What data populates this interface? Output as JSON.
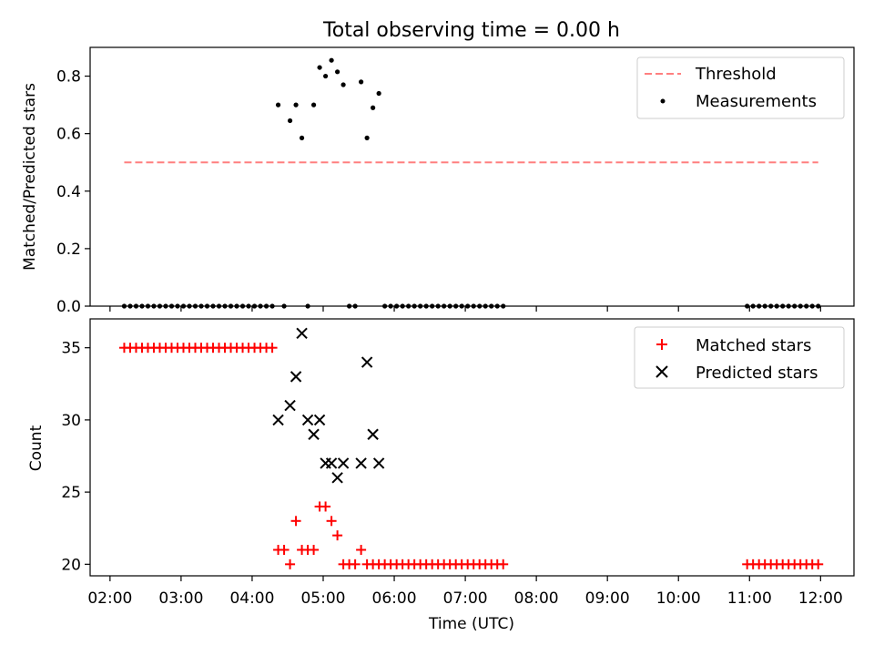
{
  "figure": {
    "title": "Total observing time = 0.00 h"
  },
  "chart_data": [
    {
      "type": "scatter",
      "panel": "top",
      "ylabel": "Matched/Predicted stars",
      "ylim": [
        0,
        0.9
      ],
      "yticks": [
        0.0,
        0.2,
        0.4,
        0.6,
        0.8
      ],
      "ytick_labels": [
        "0.0",
        "0.2",
        "0.4",
        "0.6",
        "0.8"
      ],
      "xlim_hours": [
        1.72,
        12.47
      ],
      "grid": false,
      "legend_position": "top-right",
      "series": [
        {
          "name": "Threshold",
          "kind": "dashed-line",
          "color": "#ff7f7f",
          "x": [
            "02:12",
            "11:58"
          ],
          "y": [
            0.5,
            0.5
          ]
        },
        {
          "name": "Measurements",
          "kind": "points",
          "color": "#000000",
          "x": [
            "02:12",
            "02:17",
            "02:22",
            "02:27",
            "02:32",
            "02:37",
            "02:42",
            "02:47",
            "02:52",
            "02:57",
            "03:02",
            "03:07",
            "03:12",
            "03:17",
            "03:22",
            "03:27",
            "03:32",
            "03:37",
            "03:42",
            "03:47",
            "03:52",
            "03:57",
            "04:02",
            "04:07",
            "04:12",
            "04:17",
            "04:22",
            "04:27",
            "04:32",
            "04:37",
            "04:42",
            "04:47",
            "04:52",
            "04:57",
            "05:02",
            "05:07",
            "05:12",
            "05:17",
            "05:22",
            "05:27",
            "05:32",
            "05:37",
            "05:42",
            "05:47",
            "05:52",
            "05:57",
            "06:02",
            "06:07",
            "06:12",
            "06:17",
            "06:22",
            "06:27",
            "06:32",
            "06:37",
            "06:42",
            "06:47",
            "06:52",
            "06:57",
            "07:02",
            "07:07",
            "07:12",
            "07:17",
            "07:22",
            "07:27",
            "07:32",
            "10:58",
            "11:03",
            "11:08",
            "11:13",
            "11:18",
            "11:23",
            "11:28",
            "11:33",
            "11:38",
            "11:43",
            "11:48",
            "11:53",
            "11:58"
          ],
          "y": [
            0,
            0,
            0,
            0,
            0,
            0,
            0,
            0,
            0,
            0,
            0,
            0,
            0,
            0,
            0,
            0,
            0,
            0,
            0,
            0,
            0,
            0,
            0,
            0,
            0,
            0,
            0.7,
            0,
            0.645,
            0.7,
            0.585,
            0,
            0.7,
            0.83,
            0.8,
            0.855,
            0.815,
            0.77,
            0,
            0,
            0.78,
            0.585,
            0.69,
            0.74,
            0,
            0,
            0,
            0,
            0,
            0,
            0,
            0,
            0,
            0,
            0,
            0,
            0,
            0,
            0,
            0,
            0,
            0,
            0,
            0,
            0,
            0,
            0,
            0,
            0,
            0,
            0,
            0,
            0,
            0,
            0,
            0,
            0,
            0
          ]
        }
      ]
    },
    {
      "type": "scatter",
      "panel": "bottom",
      "xlabel": "Time (UTC)",
      "ylabel": "Count",
      "ylim": [
        19.2,
        37.0
      ],
      "yticks": [
        20,
        25,
        30,
        35
      ],
      "ytick_labels": [
        "20",
        "25",
        "30",
        "35"
      ],
      "xlim_hours": [
        1.72,
        12.47
      ],
      "xticks": [
        "02:00",
        "03:00",
        "04:00",
        "05:00",
        "06:00",
        "07:00",
        "08:00",
        "09:00",
        "10:00",
        "11:00",
        "12:00"
      ],
      "grid": false,
      "legend_position": "top-right",
      "series": [
        {
          "name": "Matched stars",
          "kind": "plus-markers",
          "color": "#ff0000",
          "x": [
            "02:12",
            "02:17",
            "02:22",
            "02:27",
            "02:32",
            "02:37",
            "02:42",
            "02:47",
            "02:52",
            "02:57",
            "03:02",
            "03:07",
            "03:12",
            "03:17",
            "03:22",
            "03:27",
            "03:32",
            "03:37",
            "03:42",
            "03:47",
            "03:52",
            "03:57",
            "04:02",
            "04:07",
            "04:12",
            "04:17",
            "04:22",
            "04:27",
            "04:32",
            "04:37",
            "04:42",
            "04:47",
            "04:52",
            "04:57",
            "05:02",
            "05:07",
            "05:12",
            "05:17",
            "05:22",
            "05:27",
            "05:32",
            "05:37",
            "05:42",
            "05:47",
            "05:52",
            "05:57",
            "06:02",
            "06:07",
            "06:12",
            "06:17",
            "06:22",
            "06:27",
            "06:32",
            "06:37",
            "06:42",
            "06:47",
            "06:52",
            "06:57",
            "07:02",
            "07:07",
            "07:12",
            "07:17",
            "07:22",
            "07:27",
            "07:32",
            "10:58",
            "11:03",
            "11:08",
            "11:13",
            "11:18",
            "11:23",
            "11:28",
            "11:33",
            "11:38",
            "11:43",
            "11:48",
            "11:53",
            "11:58"
          ],
          "y": [
            35,
            35,
            35,
            35,
            35,
            35,
            35,
            35,
            35,
            35,
            35,
            35,
            35,
            35,
            35,
            35,
            35,
            35,
            35,
            35,
            35,
            35,
            35,
            35,
            35,
            35,
            21,
            21,
            20,
            23,
            21,
            21,
            21,
            24,
            24,
            23,
            22,
            20,
            20,
            20,
            21,
            20,
            20,
            20,
            20,
            20,
            20,
            20,
            20,
            20,
            20,
            20,
            20,
            20,
            20,
            20,
            20,
            20,
            20,
            20,
            20,
            20,
            20,
            20,
            20,
            20,
            20,
            20,
            20,
            20,
            20,
            20,
            20,
            20,
            20,
            20,
            20,
            20
          ]
        },
        {
          "name": "Predicted stars",
          "kind": "x-markers",
          "color": "#000000",
          "x": [
            "04:22",
            "04:32",
            "04:37",
            "04:42",
            "04:47",
            "04:52",
            "04:57",
            "05:02",
            "05:07",
            "05:12",
            "05:17",
            "05:32",
            "05:37",
            "05:42",
            "05:47"
          ],
          "y": [
            30,
            31,
            33,
            36,
            30,
            29,
            30,
            27,
            27,
            26,
            27,
            27,
            34,
            29,
            27
          ]
        }
      ]
    }
  ]
}
